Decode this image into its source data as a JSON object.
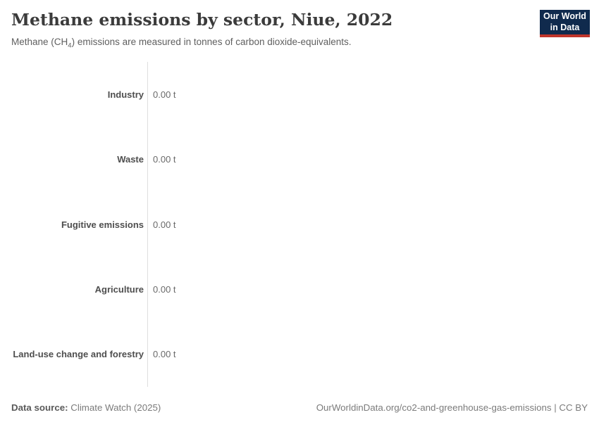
{
  "header": {
    "title": "Methane emissions by sector, Niue, 2022",
    "subtitle": {
      "pre": "Methane (CH",
      "sub": "4",
      "post": ") emissions are measured in tonnes of carbon dioxide-equivalents."
    },
    "logo": {
      "line1": "Our World",
      "line2": "in Data",
      "bg_color": "#102a4d",
      "accent_color": "#c0352b"
    }
  },
  "chart_data": {
    "type": "bar",
    "orientation": "horizontal",
    "title": "Methane emissions by sector, Niue, 2022",
    "subtitle": "Methane (CH₄) emissions are measured in tonnes of carbon dioxide-equivalents.",
    "entity": "Niue",
    "year": 2022,
    "categories": [
      "Industry",
      "Waste",
      "Fugitive emissions",
      "Agriculture",
      "Land-use change and forestry"
    ],
    "values": [
      0,
      0,
      0,
      0,
      0
    ],
    "value_labels": [
      "0.00 t",
      "0.00 t",
      "0.00 t",
      "0.00 t",
      "0.00 t"
    ],
    "unit": "tonnes of carbon dioxide-equivalents",
    "xlim": [
      0,
      0
    ],
    "grid": false,
    "legend": "none",
    "axis_line_color": "#dedede"
  },
  "footer": {
    "data_source_label": "Data source:",
    "data_source_value": "Climate Watch (2025)",
    "url_text": "OurWorldinData.org/co2-and-greenhouse-gas-emissions",
    "separator": " | ",
    "license_text": "CC BY"
  }
}
